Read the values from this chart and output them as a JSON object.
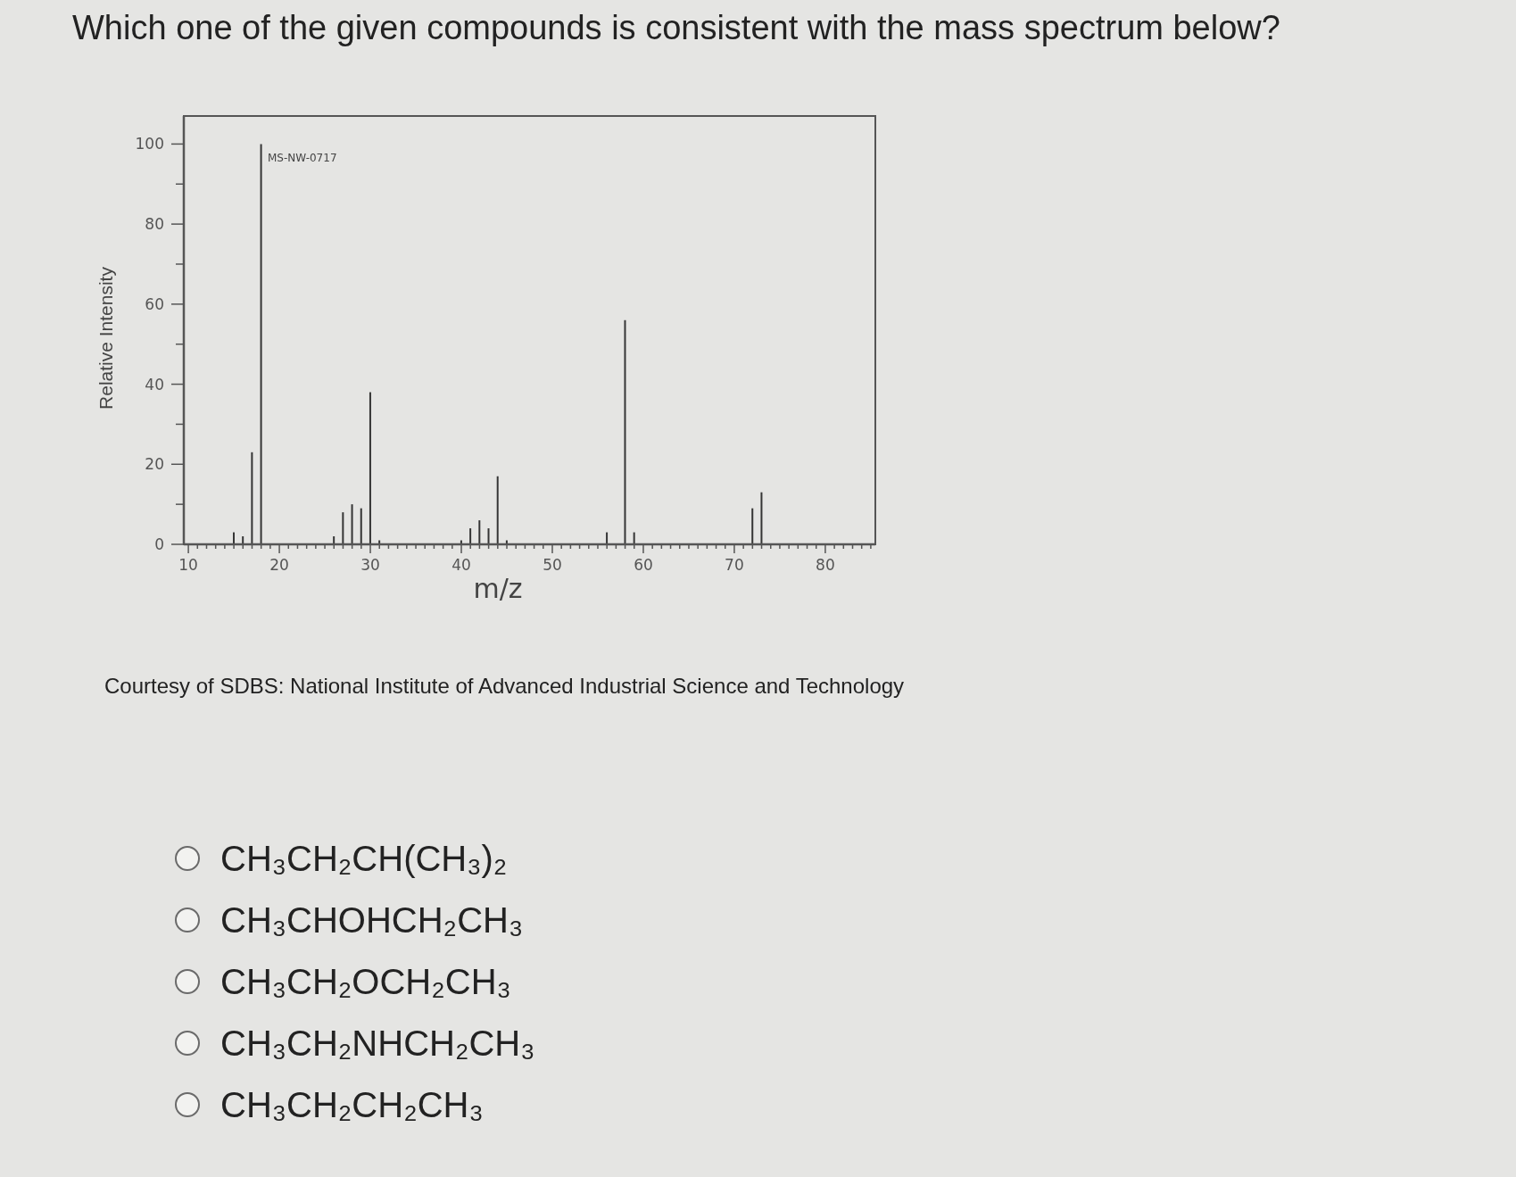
{
  "chart_data": {
    "type": "bar",
    "title": "Which one of the given compounds is consistent with the mass spectrum below?",
    "xlabel": "m/z",
    "ylabel": "Relative Intensity",
    "x": [
      15,
      16,
      17,
      18,
      26,
      27,
      28,
      29,
      30,
      31,
      40,
      41,
      42,
      43,
      44,
      45,
      56,
      58,
      59,
      72,
      73
    ],
    "values": [
      3,
      2,
      23,
      100,
      2,
      8,
      10,
      9,
      38,
      1,
      1,
      4,
      6,
      4,
      17,
      1,
      3,
      56,
      3,
      9,
      13
    ],
    "color": "#353535",
    "xlim": [
      9.5,
      85.5
    ],
    "ylim": [
      0,
      107
    ],
    "xticks": [
      10,
      {
        "value": 11,
        "label": null
      },
      {
        "value": 12,
        "label": null
      },
      {
        "value": 13,
        "label": null
      },
      {
        "value": 14,
        "label": null
      },
      {
        "value": 15,
        "label": null
      },
      {
        "value": 16,
        "label": null
      },
      {
        "value": 17,
        "label": null
      },
      {
        "value": 18,
        "label": null
      },
      {
        "value": 19,
        "label": null
      },
      20,
      {
        "value": 21,
        "label": null
      },
      {
        "value": 22,
        "label": null
      },
      {
        "value": 23,
        "label": null
      },
      {
        "value": 24,
        "label": null
      },
      {
        "value": 25,
        "label": null
      },
      {
        "value": 26,
        "label": null
      },
      {
        "value": 27,
        "label": null
      },
      {
        "value": 28,
        "label": null
      },
      {
        "value": 29,
        "label": null
      },
      30,
      {
        "value": 31,
        "label": null
      },
      {
        "value": 32,
        "label": null
      },
      {
        "value": 33,
        "label": null
      },
      {
        "value": 34,
        "label": null
      },
      {
        "value": 35,
        "label": null
      },
      {
        "value": 36,
        "label": null
      },
      {
        "value": 37,
        "label": null
      },
      {
        "value": 38,
        "label": null
      },
      {
        "value": 39,
        "label": null
      },
      40,
      {
        "value": 41,
        "label": null
      },
      {
        "value": 42,
        "label": null
      },
      {
        "value": 43,
        "label": null
      },
      {
        "value": 44,
        "label": null
      },
      {
        "value": 45,
        "label": null
      },
      {
        "value": 46,
        "label": null
      },
      {
        "value": 47,
        "label": null
      },
      {
        "value": 48,
        "label": null
      },
      {
        "value": 49,
        "label": null
      },
      50,
      {
        "value": 51,
        "label": null
      },
      {
        "value": 52,
        "label": null
      },
      {
        "value": 53,
        "label": null
      },
      {
        "value": 54,
        "label": null
      },
      {
        "value": 55,
        "label": null
      },
      {
        "value": 56,
        "label": null
      },
      {
        "value": 57,
        "label": null
      },
      {
        "value": 58,
        "label": null
      },
      {
        "value": 59,
        "label": null
      },
      60,
      {
        "value": 61,
        "label": null
      },
      {
        "value": 62,
        "label": null
      },
      {
        "value": 63,
        "label": null
      },
      {
        "value": 64,
        "label": null
      },
      {
        "value": 65,
        "label": null
      },
      {
        "value": 66,
        "label": null
      },
      {
        "value": 67,
        "label": null
      },
      {
        "value": 68,
        "label": null
      },
      {
        "value": 69,
        "label": null
      },
      70,
      {
        "value": 71,
        "label": null
      },
      {
        "value": 72,
        "label": null
      },
      {
        "value": 73,
        "label": null
      },
      {
        "value": 74,
        "label": null
      },
      {
        "value": 75,
        "label": null
      },
      {
        "value": 76,
        "label": null
      },
      {
        "value": 77,
        "label": null
      },
      {
        "value": 78,
        "label": null
      },
      {
        "value": 79,
        "label": null
      },
      80,
      {
        "value": 81,
        "label": null
      },
      {
        "value": 82,
        "label": null
      },
      {
        "value": 83,
        "label": null
      },
      {
        "value": 84,
        "label": null
      },
      {
        "value": 85,
        "label": null
      }
    ],
    "yticks": [
      0,
      {
        "value": 10,
        "label": null
      },
      20,
      {
        "value": 30,
        "label": null
      },
      40,
      {
        "value": 50,
        "label": null
      },
      60,
      {
        "value": 70,
        "label": null
      },
      80,
      {
        "value": 90,
        "label": null
      },
      100
    ],
    "annotations": [
      "MS-NW-0717",
      "Courtesy of SDBS: National Institute of Advanced Industrial Science and Technology",
      "CH₃CH₂CH(CH₃)₂",
      "CH₃CHOHCH₂CH₃",
      "CH₃CH₂OCH₂CH₃",
      "CH₃CH₂NHCH₂CH₃",
      "CH₃CH₂CH₂CH₃"
    ]
  }
}
